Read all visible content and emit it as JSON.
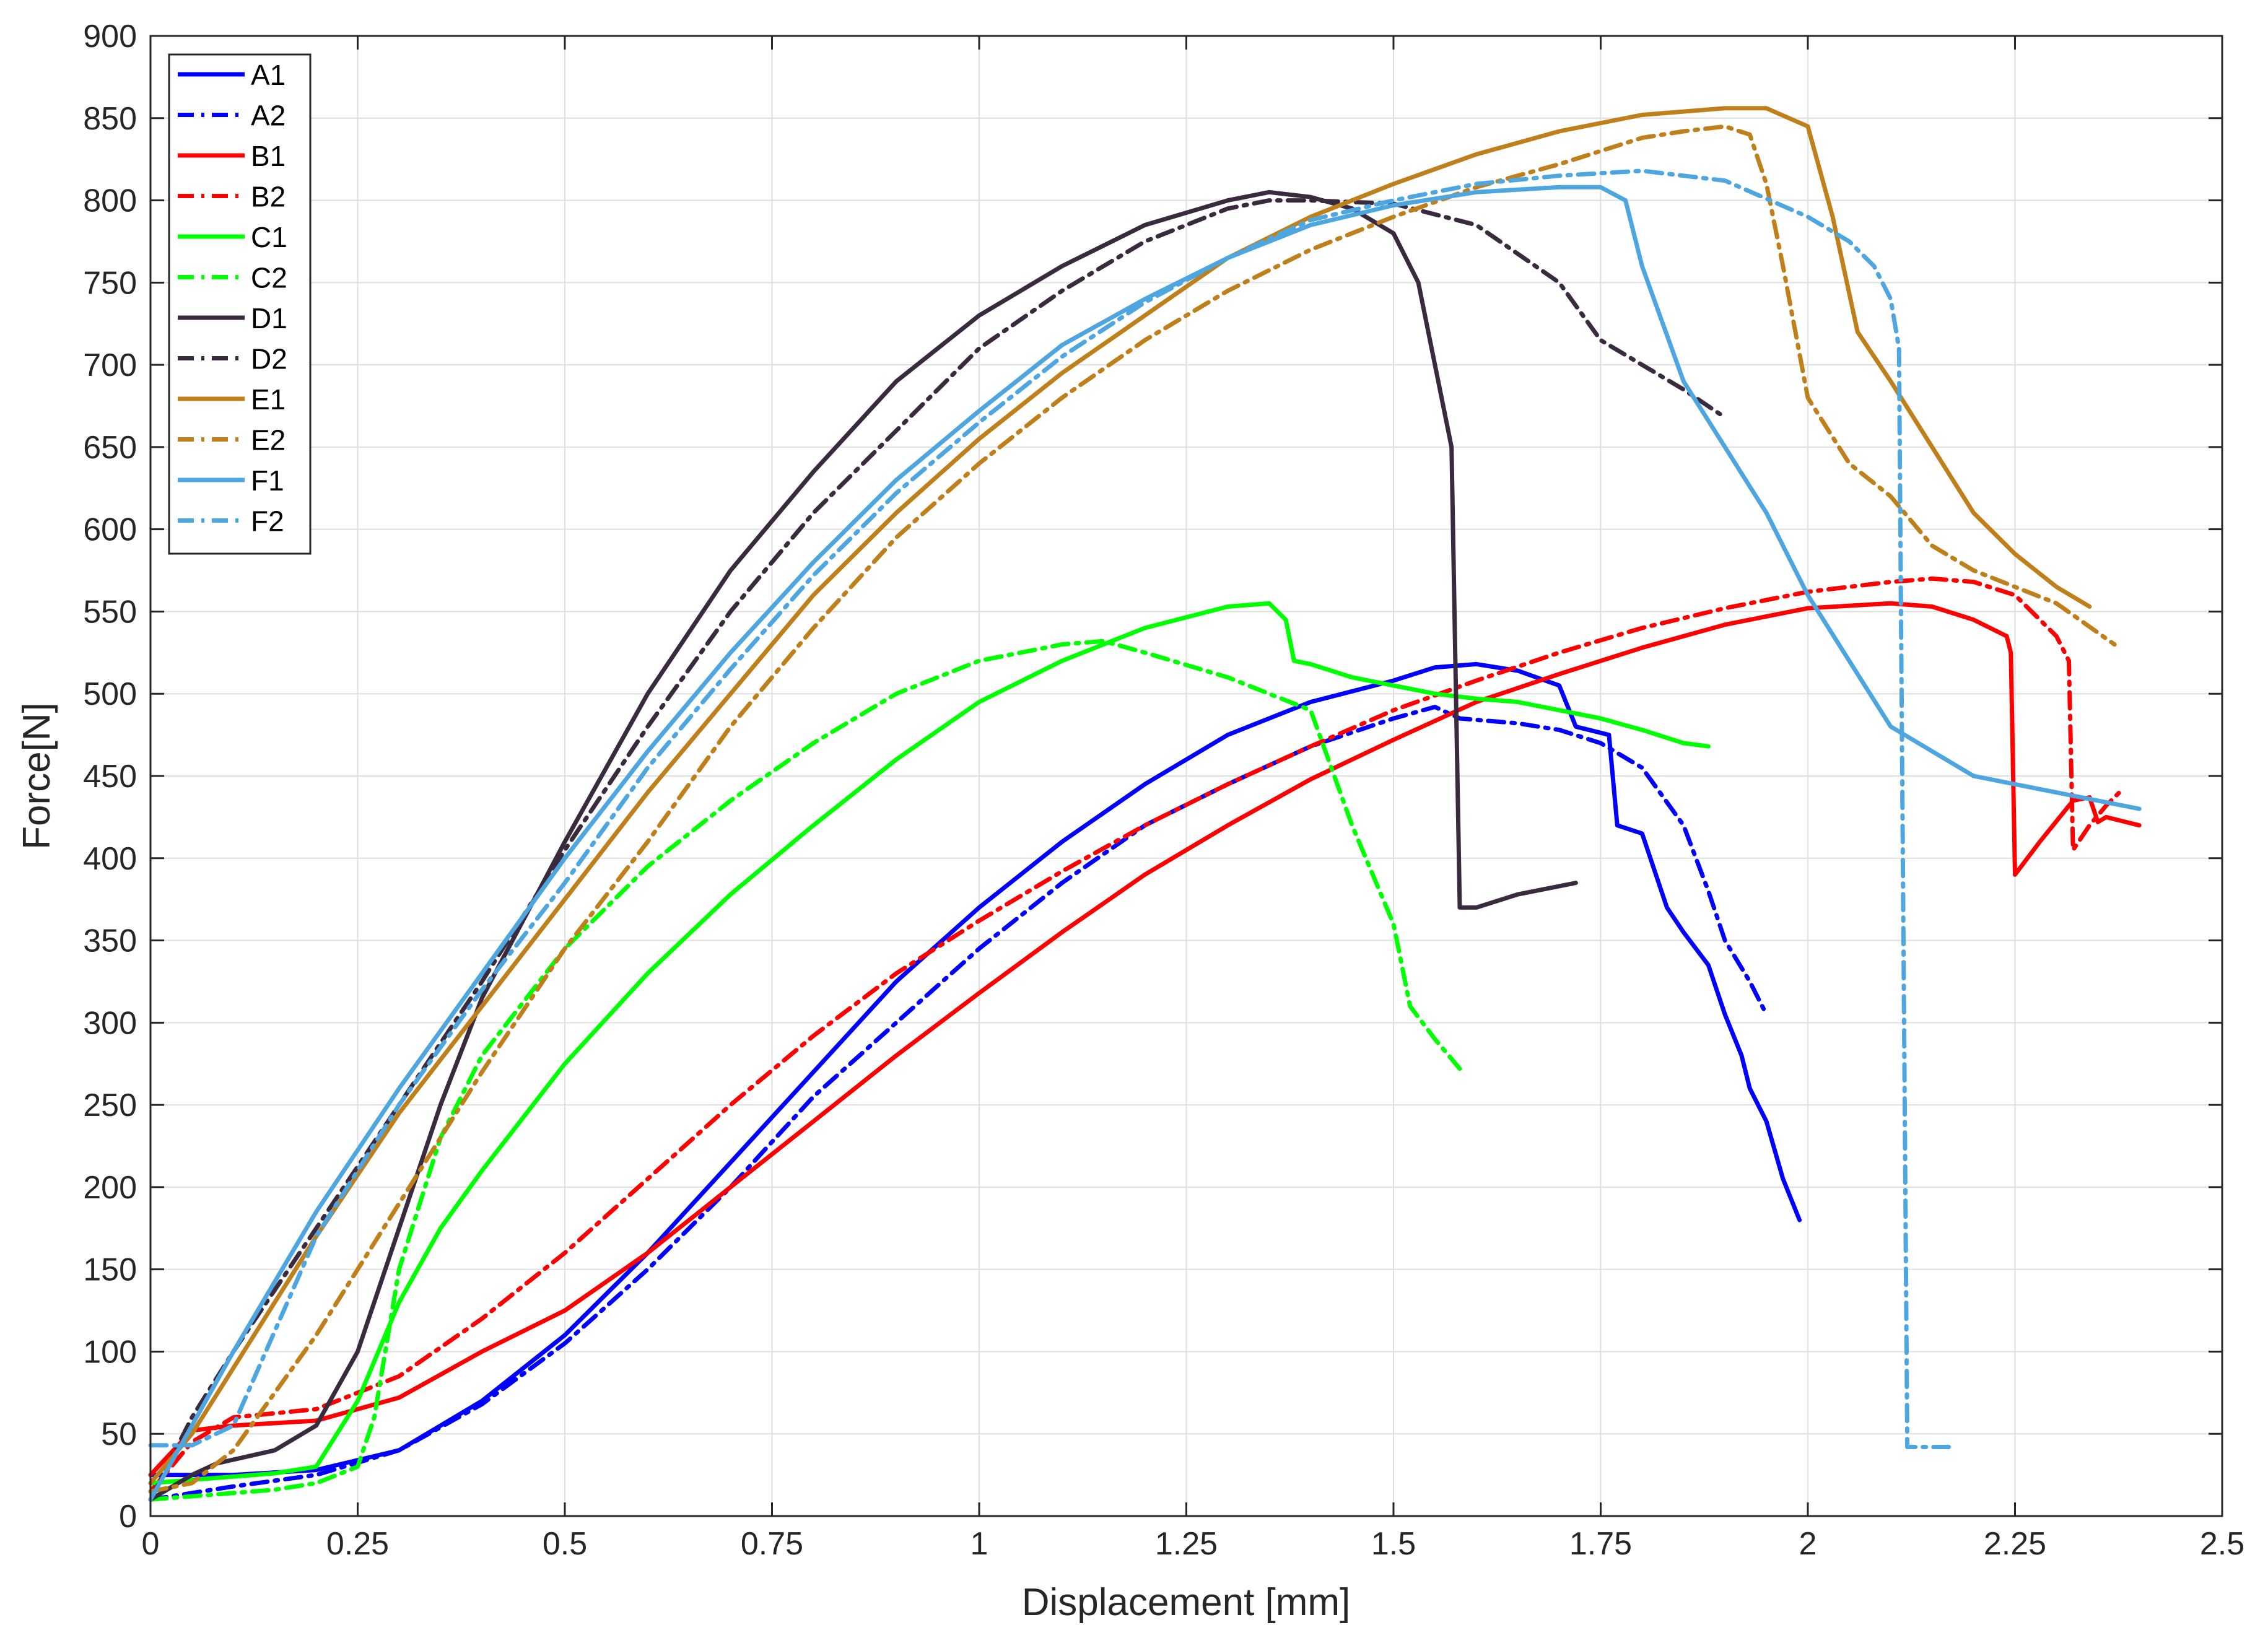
{
  "chart_data": {
    "type": "line",
    "xlabel": "Displacement [mm]",
    "ylabel": "Force[N]",
    "xlim": [
      0,
      2.5
    ],
    "ylim": [
      0,
      900
    ],
    "xticks": [
      0,
      0.25,
      0.5,
      0.75,
      1,
      1.25,
      1.5,
      1.75,
      2,
      2.25,
      2.5
    ],
    "xtick_labels": [
      "0",
      "0.25",
      "0.5",
      "0.75",
      "1",
      "1.25",
      "1.5",
      "1.75",
      "2",
      "2.25",
      "2.5"
    ],
    "yticks": [
      0,
      50,
      100,
      150,
      200,
      250,
      300,
      350,
      400,
      450,
      500,
      550,
      600,
      650,
      700,
      750,
      800,
      850,
      900
    ],
    "ytick_labels": [
      "0",
      "50",
      "100",
      "150",
      "200",
      "250",
      "300",
      "350",
      "400",
      "450",
      "500",
      "550",
      "600",
      "650",
      "700",
      "750",
      "800",
      "850",
      "900"
    ],
    "grid": true,
    "legend_position": "top-left",
    "series": [
      {
        "name": "A1",
        "color": "#0000ff",
        "dash": "solid",
        "x": [
          0,
          0.05,
          0.1,
          0.2,
          0.3,
          0.4,
          0.5,
          0.6,
          0.7,
          0.8,
          0.9,
          1.0,
          1.1,
          1.2,
          1.3,
          1.4,
          1.5,
          1.55,
          1.6,
          1.65,
          1.7,
          1.72,
          1.76,
          1.77,
          1.8,
          1.83,
          1.85,
          1.88,
          1.9,
          1.92,
          1.93,
          1.95,
          1.97,
          1.99
        ],
        "y": [
          25,
          25,
          25,
          28,
          40,
          70,
          110,
          160,
          215,
          270,
          325,
          370,
          410,
          445,
          475,
          495,
          508,
          516,
          518,
          514,
          505,
          480,
          475,
          420,
          415,
          370,
          355,
          335,
          305,
          280,
          260,
          240,
          205,
          180
        ]
      },
      {
        "name": "A2",
        "color": "#0000ff",
        "dash": "dashdot",
        "x": [
          0,
          0.05,
          0.1,
          0.2,
          0.3,
          0.4,
          0.5,
          0.6,
          0.7,
          0.8,
          0.9,
          1.0,
          1.1,
          1.2,
          1.3,
          1.4,
          1.5,
          1.55,
          1.58,
          1.65,
          1.7,
          1.75,
          1.8,
          1.85,
          1.88,
          1.9,
          1.93,
          1.95
        ],
        "y": [
          10,
          14,
          18,
          25,
          40,
          68,
          105,
          150,
          200,
          255,
          300,
          345,
          385,
          420,
          445,
          468,
          485,
          492,
          485,
          482,
          478,
          470,
          455,
          420,
          380,
          350,
          325,
          305
        ]
      },
      {
        "name": "B1",
        "color": "#ff0000",
        "dash": "solid",
        "x": [
          0,
          0.05,
          0.1,
          0.2,
          0.3,
          0.4,
          0.5,
          0.6,
          0.7,
          0.8,
          0.9,
          1.0,
          1.1,
          1.2,
          1.3,
          1.4,
          1.5,
          1.6,
          1.7,
          1.8,
          1.9,
          2.0,
          2.1,
          2.15,
          2.2,
          2.24,
          2.245,
          2.25,
          2.28,
          2.32,
          2.34,
          2.35,
          2.36,
          2.4
        ],
        "y": [
          25,
          52,
          55,
          58,
          72,
          100,
          125,
          160,
          200,
          240,
          280,
          318,
          355,
          390,
          420,
          448,
          472,
          495,
          512,
          528,
          542,
          552,
          555,
          553,
          545,
          535,
          525,
          390,
          410,
          435,
          437,
          422,
          425,
          420
        ]
      },
      {
        "name": "B2",
        "color": "#ff0000",
        "dash": "dashdot",
        "x": [
          0,
          0.05,
          0.1,
          0.2,
          0.3,
          0.4,
          0.5,
          0.6,
          0.7,
          0.8,
          0.9,
          1.0,
          1.1,
          1.2,
          1.3,
          1.4,
          1.5,
          1.6,
          1.7,
          1.8,
          1.9,
          2.0,
          2.1,
          2.15,
          2.2,
          2.25,
          2.3,
          2.315,
          2.32,
          2.34,
          2.36,
          2.38
        ],
        "y": [
          15,
          45,
          60,
          65,
          85,
          120,
          160,
          205,
          250,
          292,
          330,
          362,
          392,
          420,
          445,
          468,
          490,
          508,
          525,
          540,
          552,
          562,
          568,
          570,
          568,
          560,
          535,
          520,
          405,
          420,
          432,
          442
        ]
      },
      {
        "name": "C1",
        "color": "#00ff00",
        "dash": "solid",
        "x": [
          0,
          0.05,
          0.1,
          0.15,
          0.2,
          0.25,
          0.3,
          0.35,
          0.4,
          0.5,
          0.6,
          0.7,
          0.8,
          0.9,
          1.0,
          1.1,
          1.2,
          1.3,
          1.35,
          1.37,
          1.38,
          1.4,
          1.45,
          1.5,
          1.55,
          1.6,
          1.65,
          1.7,
          1.75,
          1.8,
          1.85,
          1.88
        ],
        "y": [
          20,
          22,
          24,
          26,
          30,
          70,
          130,
          175,
          210,
          275,
          330,
          378,
          420,
          460,
          495,
          520,
          540,
          553,
          555,
          545,
          520,
          518,
          510,
          505,
          500,
          497,
          495,
          490,
          485,
          478,
          470,
          468
        ]
      },
      {
        "name": "C2",
        "color": "#00ff00",
        "dash": "dashdot",
        "x": [
          0,
          0.05,
          0.1,
          0.15,
          0.2,
          0.25,
          0.27,
          0.3,
          0.35,
          0.4,
          0.5,
          0.6,
          0.7,
          0.8,
          0.9,
          1.0,
          1.1,
          1.15,
          1.2,
          1.3,
          1.4,
          1.45,
          1.5,
          1.52,
          1.55,
          1.58
        ],
        "y": [
          10,
          12,
          14,
          16,
          20,
          30,
          60,
          150,
          230,
          280,
          345,
          395,
          435,
          470,
          500,
          520,
          530,
          532,
          525,
          510,
          490,
          420,
          360,
          310,
          290,
          272
        ]
      },
      {
        "name": "D1",
        "color": "#3a2a3e",
        "dash": "solid",
        "x": [
          0,
          0.05,
          0.08,
          0.15,
          0.2,
          0.25,
          0.3,
          0.35,
          0.4,
          0.5,
          0.6,
          0.7,
          0.8,
          0.9,
          1.0,
          1.1,
          1.2,
          1.3,
          1.35,
          1.4,
          1.45,
          1.5,
          1.53,
          1.55,
          1.57,
          1.58,
          1.6,
          1.65,
          1.7,
          1.72
        ],
        "y": [
          10,
          25,
          32,
          40,
          55,
          100,
          175,
          250,
          315,
          410,
          500,
          575,
          635,
          690,
          730,
          760,
          785,
          800,
          805,
          802,
          795,
          780,
          750,
          700,
          650,
          370,
          370,
          378,
          383,
          385
        ]
      },
      {
        "name": "D2",
        "color": "#3a2a3e",
        "dash": "dashdot",
        "x": [
          0,
          0.05,
          0.1,
          0.2,
          0.3,
          0.4,
          0.5,
          0.6,
          0.7,
          0.8,
          0.9,
          1.0,
          1.1,
          1.2,
          1.3,
          1.35,
          1.4,
          1.5,
          1.6,
          1.7,
          1.75,
          1.8,
          1.85,
          1.9
        ],
        "y": [
          10,
          60,
          100,
          175,
          250,
          325,
          405,
          480,
          550,
          610,
          660,
          710,
          745,
          775,
          795,
          800,
          800,
          798,
          785,
          750,
          715,
          700,
          685,
          668
        ]
      },
      {
        "name": "E1",
        "color": "#bf7f1a",
        "dash": "solid",
        "x": [
          0,
          0.05,
          0.1,
          0.2,
          0.3,
          0.4,
          0.5,
          0.6,
          0.7,
          0.8,
          0.9,
          1.0,
          1.1,
          1.2,
          1.3,
          1.4,
          1.5,
          1.6,
          1.7,
          1.8,
          1.9,
          1.95,
          2.0,
          2.03,
          2.06,
          2.1,
          2.15,
          2.2,
          2.25,
          2.3,
          2.34
        ],
        "y": [
          20,
          50,
          90,
          170,
          245,
          310,
          375,
          440,
          500,
          560,
          610,
          655,
          695,
          730,
          765,
          790,
          810,
          828,
          842,
          852,
          856,
          856,
          845,
          790,
          720,
          690,
          650,
          610,
          585,
          565,
          553
        ]
      },
      {
        "name": "E2",
        "color": "#bf7f1a",
        "dash": "dashdot",
        "x": [
          0,
          0.05,
          0.1,
          0.2,
          0.3,
          0.4,
          0.5,
          0.6,
          0.7,
          0.8,
          0.9,
          1.0,
          1.1,
          1.2,
          1.3,
          1.4,
          1.5,
          1.6,
          1.7,
          1.8,
          1.85,
          1.9,
          1.93,
          1.95,
          1.97,
          2.0,
          2.05,
          2.1,
          2.15,
          2.2,
          2.3,
          2.37
        ],
        "y": [
          15,
          20,
          40,
          110,
          190,
          270,
          345,
          410,
          480,
          540,
          595,
          640,
          680,
          715,
          745,
          770,
          790,
          808,
          822,
          838,
          842,
          845,
          840,
          810,
          760,
          680,
          640,
          620,
          590,
          575,
          555,
          530
        ]
      },
      {
        "name": "F1",
        "color": "#4da6e0",
        "dash": "solid",
        "x": [
          0,
          0.05,
          0.1,
          0.2,
          0.3,
          0.4,
          0.5,
          0.6,
          0.7,
          0.8,
          0.9,
          1.0,
          1.1,
          1.2,
          1.3,
          1.4,
          1.5,
          1.6,
          1.7,
          1.75,
          1.78,
          1.8,
          1.85,
          1.9,
          1.95,
          2.0,
          2.05,
          2.1,
          2.2,
          2.3,
          2.4
        ],
        "y": [
          10,
          55,
          100,
          185,
          260,
          330,
          400,
          465,
          525,
          580,
          630,
          672,
          712,
          740,
          765,
          785,
          797,
          805,
          808,
          808,
          800,
          760,
          690,
          650,
          610,
          560,
          520,
          480,
          450,
          440,
          430
        ]
      },
      {
        "name": "F2",
        "color": "#4da6e0",
        "dash": "dashdot",
        "x": [
          0,
          0.05,
          0.1,
          0.2,
          0.3,
          0.4,
          0.5,
          0.6,
          0.7,
          0.8,
          0.9,
          1.0,
          1.1,
          1.2,
          1.3,
          1.4,
          1.5,
          1.6,
          1.7,
          1.8,
          1.9,
          2.0,
          2.05,
          2.08,
          2.1,
          2.11,
          2.12,
          2.13,
          2.17
        ],
        "y": [
          43,
          43,
          55,
          170,
          250,
          320,
          385,
          455,
          515,
          572,
          622,
          665,
          705,
          738,
          765,
          788,
          800,
          810,
          815,
          818,
          812,
          790,
          775,
          760,
          740,
          710,
          42,
          42,
          42
        ]
      }
    ]
  }
}
